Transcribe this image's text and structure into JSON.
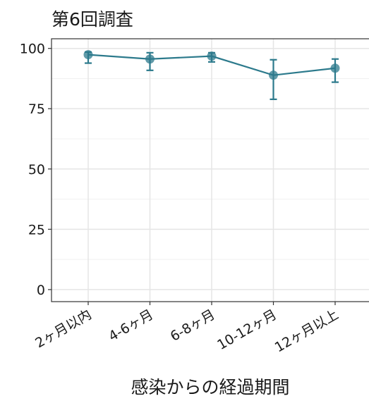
{
  "chart_data": {
    "type": "line",
    "title": "第6回調査",
    "x_label": "感染からの経過期間",
    "categories": [
      "2ヶ月以内",
      "4-6ヶ月",
      "6-8ヶ月",
      "10-12ヶ月",
      "12ヶ月以上"
    ],
    "values": [
      97.4,
      95.6,
      96.8,
      88.9,
      91.8
    ],
    "lower": [
      93.9,
      90.9,
      94.4,
      78.9,
      86.0
    ],
    "upper": [
      98.5,
      98.2,
      98.2,
      95.3,
      95.6
    ],
    "color": "#2c7a8c",
    "ylim": [
      -5,
      104
    ],
    "yticks": [
      0,
      25,
      50,
      75,
      100
    ],
    "grid": true
  }
}
